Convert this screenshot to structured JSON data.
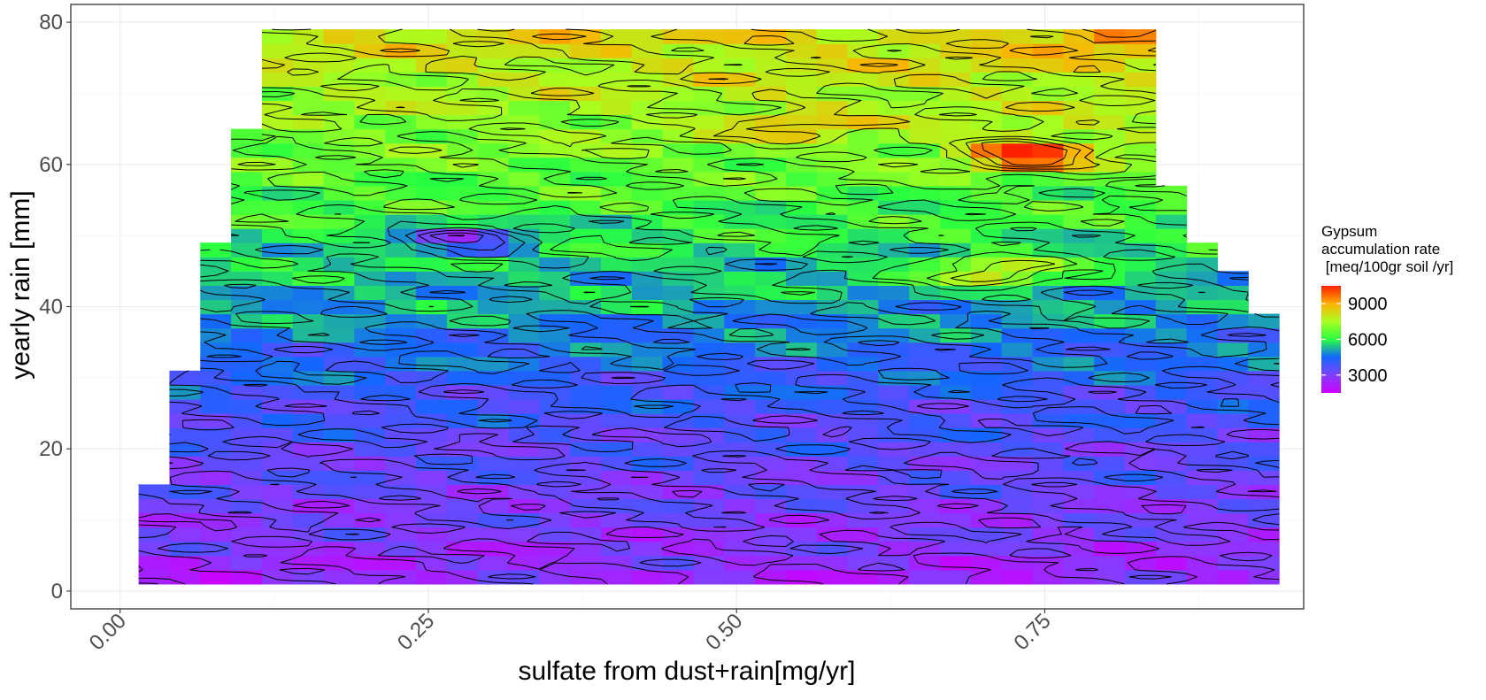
{
  "chart_data": {
    "type": "heatmap",
    "xlabel": "sulfate from dust+rain[mg/yr]",
    "ylabel": "yearly rain [mm]",
    "xlim": [
      -0.04,
      0.96
    ],
    "ylim": [
      -2.5,
      82.5
    ],
    "x_ticks": [
      {
        "value": 0.0,
        "label": "0.00"
      },
      {
        "value": 0.25,
        "label": "0.25"
      },
      {
        "value": 0.5,
        "label": "0.50"
      },
      {
        "value": 0.75,
        "label": "0.75"
      }
    ],
    "y_ticks": [
      {
        "value": 0,
        "label": "0"
      },
      {
        "value": 20,
        "label": "20"
      },
      {
        "value": 40,
        "label": "40"
      },
      {
        "value": 60,
        "label": "60"
      },
      {
        "value": 80,
        "label": "80"
      }
    ],
    "grid": true,
    "legend": {
      "placement": "right",
      "title_lines": [
        "Gypsum",
        "accumulation rate",
        " [meq/100gr soil /yr]"
      ],
      "range": [
        1500,
        10500
      ],
      "breaks": [
        {
          "value": 3000,
          "label": "3000"
        },
        {
          "value": 6000,
          "label": "6000"
        },
        {
          "value": 9000,
          "label": "9000"
        }
      ],
      "colors": [
        "#cc00ff",
        "#8040ff",
        "#1466ff",
        "#28ff40",
        "#a8ff20",
        "#ffb000",
        "#ff2000"
      ]
    },
    "grid_cell": {
      "dx": 0.025,
      "dy": 2.0
    },
    "x_extent_by_y": [
      {
        "y_max": 15,
        "x_min": 0.015,
        "x_max": 0.84
      },
      {
        "y_max": 31,
        "x_min": 0.04,
        "x_max": 0.84
      },
      {
        "y_max": 48,
        "x_min": 0.065,
        "x_max": 0.84
      },
      {
        "y_max": 64,
        "x_min": 0.09,
        "x_max": 0.84
      },
      {
        "y_max": 79,
        "x_min": 0.115,
        "x_max": 0.84
      }
    ],
    "y_extent_by_x": [
      {
        "x_max": 0.84,
        "y_top": 79
      },
      {
        "x_max": 0.865,
        "y_top": 57
      },
      {
        "x_max": 0.89,
        "y_top": 48
      },
      {
        "x_max": 0.915,
        "y_top": 45
      },
      {
        "x_max": 0.94,
        "y_top": 39
      }
    ],
    "value_bands": [
      {
        "y": 1,
        "value": 2400
      },
      {
        "y": 5,
        "value": 2700
      },
      {
        "y": 10,
        "value": 3000
      },
      {
        "y": 16,
        "value": 3300
      },
      {
        "y": 22,
        "value": 3600
      },
      {
        "y": 28,
        "value": 4000
      },
      {
        "y": 34,
        "value": 4500
      },
      {
        "y": 40,
        "value": 5100
      },
      {
        "y": 46,
        "value": 5600
      },
      {
        "y": 52,
        "value": 6100
      },
      {
        "y": 58,
        "value": 6600
      },
      {
        "y": 64,
        "value": 7200
      },
      {
        "y": 70,
        "value": 7600
      },
      {
        "y": 76,
        "value": 8100
      },
      {
        "y": 80,
        "value": 8400
      }
    ],
    "hotspots": [
      {
        "x": 0.735,
        "y": 61.5,
        "value": 10400
      },
      {
        "x": 0.79,
        "y": 78,
        "value": 9200
      },
      {
        "x": 0.55,
        "y": 65.5,
        "value": 8700
      },
      {
        "x": 0.28,
        "y": 49.5,
        "value": 3200
      },
      {
        "x": 0.71,
        "y": 45,
        "value": 8300
      }
    ]
  }
}
